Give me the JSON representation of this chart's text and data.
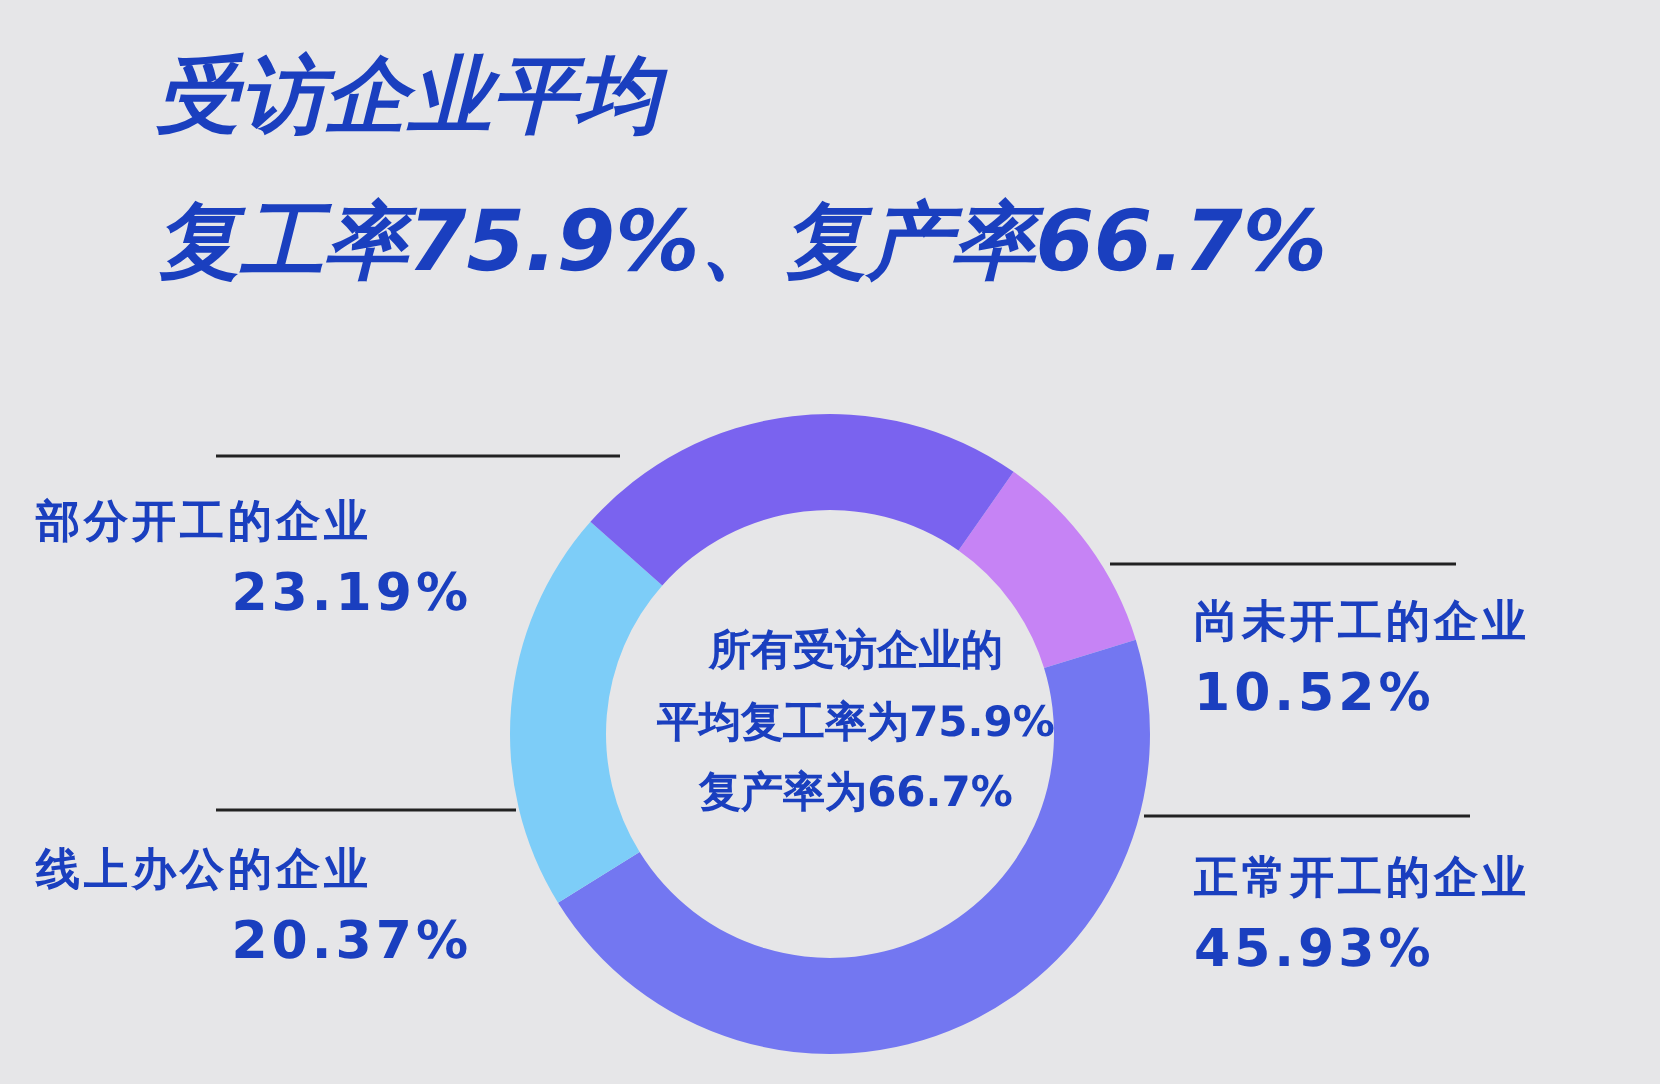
{
  "chart_data": {
    "type": "donut",
    "title": "受访企业平均",
    "subtitle": "复工率75.9%、复产率66.7%",
    "categories": [
      "尚未开工的企业",
      "正常开工的企业",
      "线上办公的企业",
      "部分开工的企业"
    ],
    "values": [
      10.52,
      45.93,
      20.37,
      23.19
    ],
    "colors": [
      "#c683f5",
      "#7377f1",
      "#7dcdf8",
      "#7a63ef"
    ],
    "value_labels": [
      "10.52%",
      "45.93%",
      "20.37%",
      "23.19%"
    ],
    "annotations": [
      "所有受访企业的",
      "平均复工率为75.9%",
      "复产率为66.7%"
    ]
  }
}
